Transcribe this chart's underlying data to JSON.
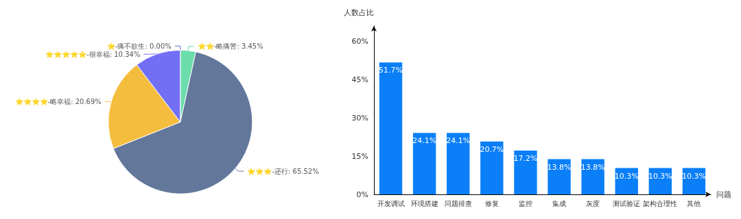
{
  "chart_data": [
    {
      "type": "pie",
      "categories": [
        "⭐-痛不欲生",
        "⭐⭐-略痛苦",
        "⭐⭐⭐-还行",
        "⭐⭐⭐⭐-略幸福",
        "⭐⭐⭐⭐⭐-很幸福"
      ],
      "values": [
        0,
        3.45,
        65.52,
        20.69,
        10.34
      ],
      "value_labels": [
        "0.00%",
        "3.45%",
        "65.52%",
        "20.69%",
        "10.34%"
      ],
      "colors": [
        "#5470c6",
        "#6bdcab",
        "#62779a",
        "#f4bd3e",
        "#736ff5"
      ]
    },
    {
      "type": "bar",
      "categories": [
        "开发调试",
        "环境搭建",
        "问题排查",
        "修复",
        "监控",
        "集成",
        "灰度",
        "测试验证",
        "架构合理性",
        "其他"
      ],
      "series": [
        {
          "color": "#0a7ff7",
          "values": [
            51.7,
            24.1,
            24.1,
            20.7,
            17.2,
            13.8,
            13.8,
            10.3,
            10.3,
            10.3
          ],
          "value_labels": [
            "51.7%",
            "24.1%",
            "24.1%",
            "20.7%",
            "17.2%",
            "13.8%",
            "13.8%",
            "10.3%",
            "10.3%",
            "10.3%"
          ]
        }
      ],
      "xlabel": "问题",
      "ylabel": "人数占比",
      "ylim": [
        0,
        66
      ],
      "yticks": [
        {
          "value": 0,
          "label": "0%"
        },
        {
          "value": 15,
          "label": "15%"
        },
        {
          "value": 30,
          "label": "30%"
        },
        {
          "value": 45,
          "label": "45%"
        },
        {
          "value": 60,
          "label": "60%"
        }
      ],
      "grid": false
    }
  ]
}
